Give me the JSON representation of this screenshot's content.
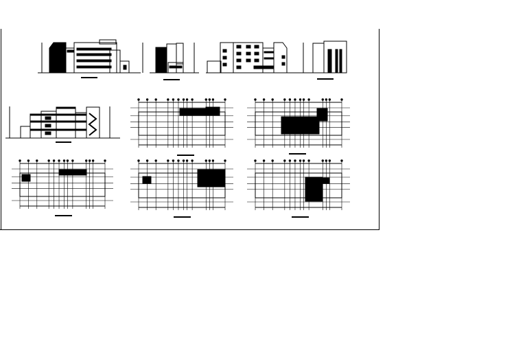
{
  "drawing": {
    "colors": {
      "background": "#ffffff",
      "ink": "#000000"
    },
    "sheet": {
      "views": [
        {
          "kind": "elevation",
          "id": "elevation-front"
        },
        {
          "kind": "elevation",
          "id": "elevation-side-left"
        },
        {
          "kind": "elevation",
          "id": "elevation-rear"
        },
        {
          "kind": "elevation",
          "id": "elevation-side-right"
        },
        {
          "kind": "section",
          "id": "section"
        },
        {
          "kind": "plan",
          "id": "plan-1"
        },
        {
          "kind": "plan",
          "id": "plan-2"
        },
        {
          "kind": "plan",
          "id": "plan-3"
        },
        {
          "kind": "plan",
          "id": "plan-4"
        },
        {
          "kind": "plan",
          "id": "plan-5"
        }
      ]
    }
  }
}
